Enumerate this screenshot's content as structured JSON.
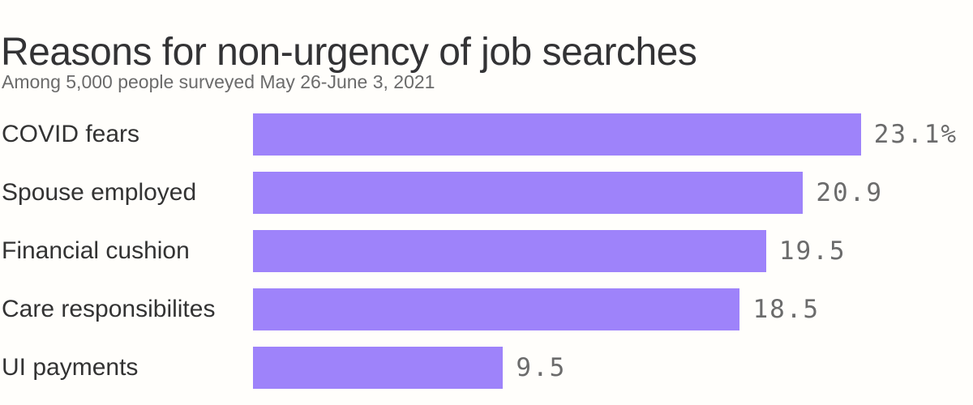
{
  "page": {
    "background": "#fffefb"
  },
  "header": {
    "title": "Reasons for non-urgency of job searches",
    "subtitle": "Among 5,000 people surveyed May 26-June 3, 2021"
  },
  "colors": {
    "bar": "#9e83fa",
    "title_text": "#333335",
    "subtitle_text": "#6b6b6b",
    "category_text": "#333333",
    "value_text": "#6b6b6b",
    "background": "#fffefb"
  },
  "chart_data": {
    "type": "bar",
    "orientation": "horizontal",
    "title": "Reasons for non-urgency of job searches",
    "subtitle": "Among 5,000 people surveyed May 26-June 3, 2021",
    "categories": [
      "COVID fears",
      "Spouse employed",
      "Financial cushion",
      "Care responsibilites",
      "UI payments"
    ],
    "values": [
      23.1,
      20.9,
      19.5,
      18.5,
      9.5
    ],
    "value_labels": [
      "23.1%",
      "20.9",
      "19.5",
      "18.5",
      "9.5"
    ],
    "unit": "%",
    "xlabel": "",
    "ylabel": "",
    "xlim": [
      0,
      27.36
    ],
    "grid": false,
    "legend": false,
    "bar_color": "#9e83fa"
  }
}
